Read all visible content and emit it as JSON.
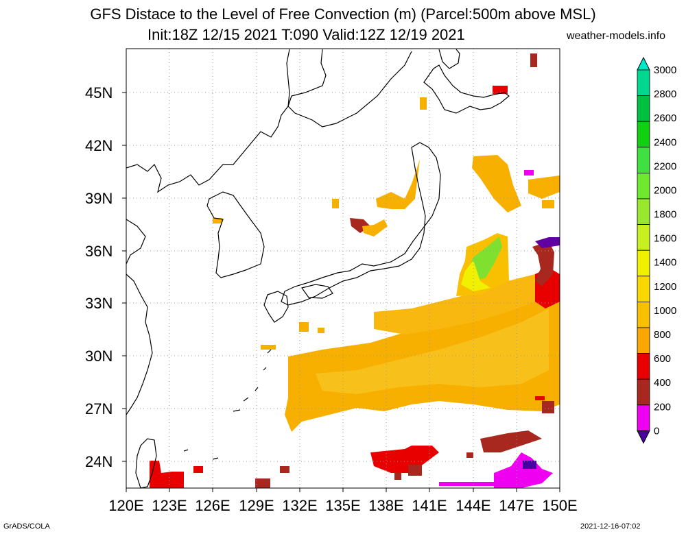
{
  "header": {
    "title_line1": "GFS Distace to the Level of Free Convection (m) (Parcel:500m above MSL)",
    "title_line2": "Init:18Z 12/15 2021 T:090 Valid:12Z 12/19 2021",
    "site": "weather-models.info"
  },
  "footer": {
    "left": "GrADS/COLA",
    "right": "2021-12-16-07:02"
  },
  "map": {
    "lat_labels": [
      "45N",
      "42N",
      "39N",
      "36N",
      "33N",
      "30N",
      "27N",
      "24N"
    ],
    "lon_labels": [
      "120E",
      "123E",
      "126E",
      "129E",
      "132E",
      "135E",
      "138E",
      "141E",
      "144E",
      "147E",
      "150E"
    ],
    "lat_range": [
      22.5,
      47.5
    ],
    "lon_range": [
      120,
      150
    ]
  },
  "colorbar": {
    "labels": [
      "3000",
      "2800",
      "2600",
      "2400",
      "2200",
      "2000",
      "1800",
      "1600",
      "1400",
      "1200",
      "1000",
      "800",
      "600",
      "400",
      "200",
      "0"
    ],
    "colors": [
      "#00e8c8",
      "#00d890",
      "#00c040",
      "#10d010",
      "#40e040",
      "#70e830",
      "#98e830",
      "#c8f020",
      "#f0f000",
      "#f8d800",
      "#f8c000",
      "#f8a800",
      "#e80000",
      "#a82820",
      "#f000f0",
      "#4800a0"
    ]
  }
}
